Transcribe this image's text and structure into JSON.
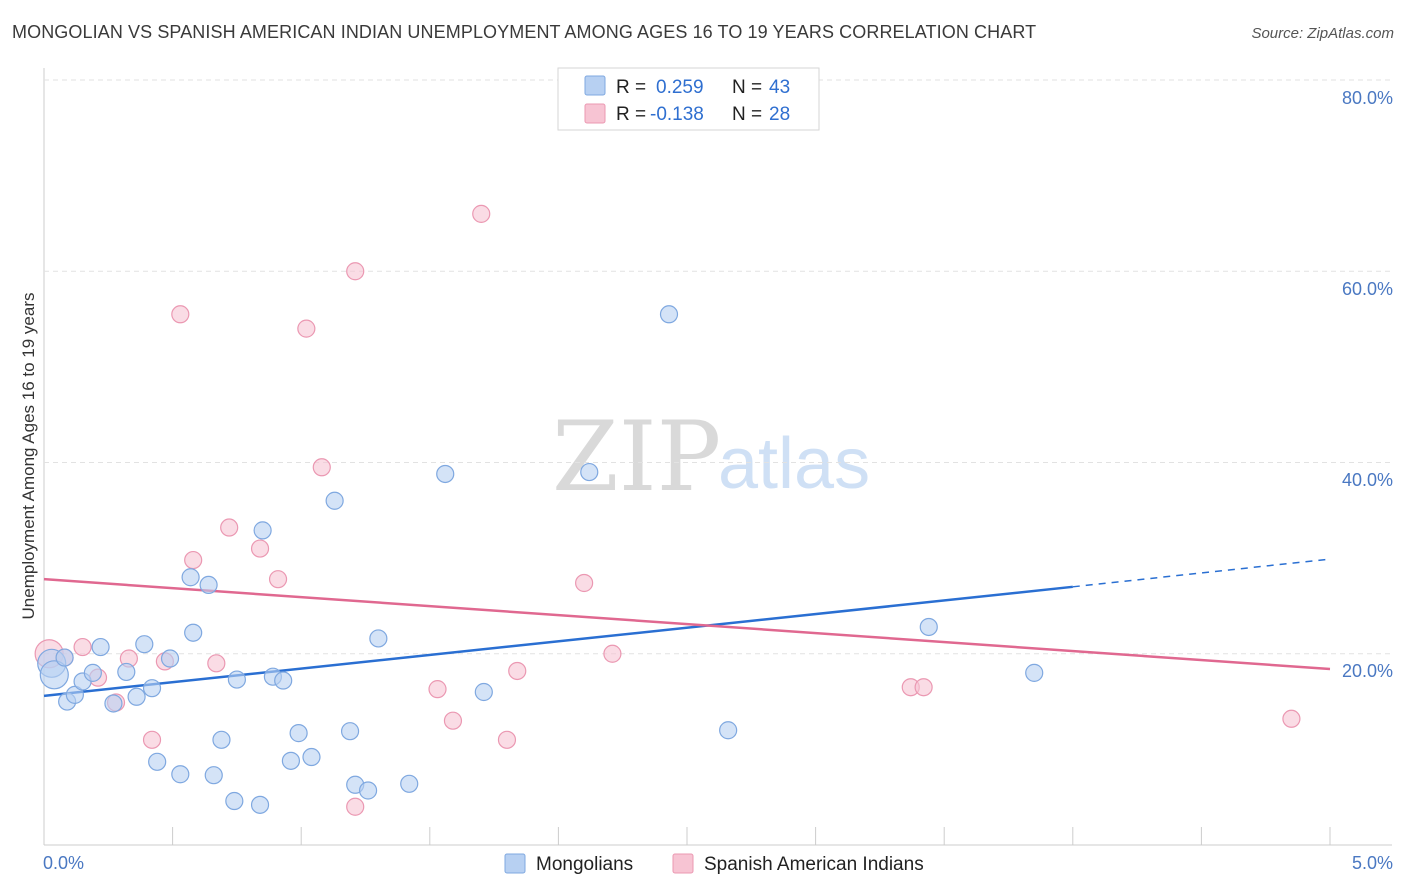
{
  "header": {
    "title": "MONGOLIAN VS SPANISH AMERICAN INDIAN UNEMPLOYMENT AMONG AGES 16 TO 19 YEARS CORRELATION CHART",
    "source": "Source: ZipAtlas.com"
  },
  "watermark": {
    "zip": "ZIP",
    "atlas": "atlas"
  },
  "colors": {
    "mongolian_fill": "#b7d0f2",
    "mongolian_stroke": "#7fa8e0",
    "mongolian_line": "#2a6fd2",
    "spanish_fill": "#f7c4d3",
    "spanish_stroke": "#eb98b2",
    "spanish_line": "#e06890",
    "grid": "#e2e2e2",
    "tick_label": "#4a78c2"
  },
  "legend": {
    "rows": [
      {
        "r_label": "R =",
        "r_value": "0.259",
        "n_label": "N =",
        "n_value": "43"
      },
      {
        "r_label": "R =",
        "r_value": "-0.138",
        "n_label": "N =",
        "n_value": "28"
      }
    ]
  },
  "chart_data": {
    "type": "scatter",
    "title": "MONGOLIAN VS SPANISH AMERICAN INDIAN UNEMPLOYMENT AMONG AGES 16 TO 19 YEARS CORRELATION CHART",
    "xlabel": "",
    "ylabel": "Unemployment Among Ages 16 to 19 years",
    "xlim": [
      0,
      5
    ],
    "ylim": [
      0,
      80
    ],
    "x_tick_labels": [
      "0.0%",
      "5.0%"
    ],
    "y_ticks": [
      20,
      40,
      60,
      80
    ],
    "y_tick_labels": [
      "20.0%",
      "40.0%",
      "60.0%",
      "80.0%"
    ],
    "grid": true,
    "legend_position": "top-center",
    "series": [
      {
        "name": "Mongolians",
        "R": 0.259,
        "N": 43,
        "trend": {
          "x0": 0.0,
          "y0": 15.6,
          "x1": 4.0,
          "y1": 27.0,
          "dash_x_end": 5.0,
          "dash_y_end": 29.9
        },
        "points": [
          {
            "x": 0.03,
            "y": 19.0,
            "big": true
          },
          {
            "x": 0.04,
            "y": 17.8,
            "big": true
          },
          {
            "x": 0.08,
            "y": 19.6
          },
          {
            "x": 0.09,
            "y": 15.0
          },
          {
            "x": 0.12,
            "y": 15.7
          },
          {
            "x": 0.15,
            "y": 17.1
          },
          {
            "x": 0.19,
            "y": 18.0
          },
          {
            "x": 0.22,
            "y": 20.7
          },
          {
            "x": 0.27,
            "y": 14.8
          },
          {
            "x": 0.32,
            "y": 18.1
          },
          {
            "x": 0.36,
            "y": 15.5
          },
          {
            "x": 0.39,
            "y": 21.0
          },
          {
            "x": 0.42,
            "y": 16.4
          },
          {
            "x": 0.44,
            "y": 8.7
          },
          {
            "x": 0.49,
            "y": 19.5
          },
          {
            "x": 0.53,
            "y": 7.4
          },
          {
            "x": 0.57,
            "y": 28.0
          },
          {
            "x": 0.58,
            "y": 22.2
          },
          {
            "x": 0.64,
            "y": 27.2
          },
          {
            "x": 0.66,
            "y": 7.3
          },
          {
            "x": 0.69,
            "y": 11.0
          },
          {
            "x": 0.74,
            "y": 4.6
          },
          {
            "x": 0.75,
            "y": 17.3
          },
          {
            "x": 0.84,
            "y": 4.2
          },
          {
            "x": 0.85,
            "y": 32.9
          },
          {
            "x": 0.89,
            "y": 17.6
          },
          {
            "x": 0.93,
            "y": 17.2
          },
          {
            "x": 0.96,
            "y": 8.8
          },
          {
            "x": 0.99,
            "y": 11.7
          },
          {
            "x": 1.04,
            "y": 9.2
          },
          {
            "x": 1.13,
            "y": 36.0
          },
          {
            "x": 1.19,
            "y": 11.9
          },
          {
            "x": 1.21,
            "y": 6.3
          },
          {
            "x": 1.26,
            "y": 5.7
          },
          {
            "x": 1.3,
            "y": 21.6
          },
          {
            "x": 1.42,
            "y": 6.4
          },
          {
            "x": 1.56,
            "y": 38.8
          },
          {
            "x": 1.71,
            "y": 16.0
          },
          {
            "x": 2.12,
            "y": 39.0
          },
          {
            "x": 2.43,
            "y": 55.5
          },
          {
            "x": 2.66,
            "y": 12.0
          },
          {
            "x": 3.44,
            "y": 22.8
          },
          {
            "x": 3.85,
            "y": 18.0
          }
        ]
      },
      {
        "name": "Spanish American Indians",
        "R": -0.138,
        "N": 28,
        "trend": {
          "x0": 0.0,
          "y0": 27.8,
          "x1": 5.0,
          "y1": 18.4
        },
        "points": [
          {
            "x": 0.02,
            "y": 20.0,
            "big": true
          },
          {
            "x": 0.08,
            "y": 19.6
          },
          {
            "x": 0.15,
            "y": 20.7
          },
          {
            "x": 0.21,
            "y": 17.5
          },
          {
            "x": 0.28,
            "y": 14.9
          },
          {
            "x": 0.33,
            "y": 19.5
          },
          {
            "x": 0.42,
            "y": 11.0
          },
          {
            "x": 0.47,
            "y": 19.2
          },
          {
            "x": 0.53,
            "y": 55.5
          },
          {
            "x": 0.58,
            "y": 29.8
          },
          {
            "x": 0.67,
            "y": 19.0
          },
          {
            "x": 0.72,
            "y": 33.2
          },
          {
            "x": 0.84,
            "y": 31.0
          },
          {
            "x": 0.91,
            "y": 27.8
          },
          {
            "x": 1.02,
            "y": 54.0
          },
          {
            "x": 1.08,
            "y": 39.5
          },
          {
            "x": 1.21,
            "y": 4.0
          },
          {
            "x": 1.21,
            "y": 60.0
          },
          {
            "x": 1.7,
            "y": 66.0
          },
          {
            "x": 1.53,
            "y": 16.3
          },
          {
            "x": 1.59,
            "y": 13.0
          },
          {
            "x": 1.8,
            "y": 11.0
          },
          {
            "x": 1.84,
            "y": 18.2
          },
          {
            "x": 2.1,
            "y": 27.4
          },
          {
            "x": 2.21,
            "y": 20.0
          },
          {
            "x": 3.37,
            "y": 16.5
          },
          {
            "x": 3.42,
            "y": 16.5
          },
          {
            "x": 4.85,
            "y": 13.2
          }
        ]
      }
    ]
  }
}
